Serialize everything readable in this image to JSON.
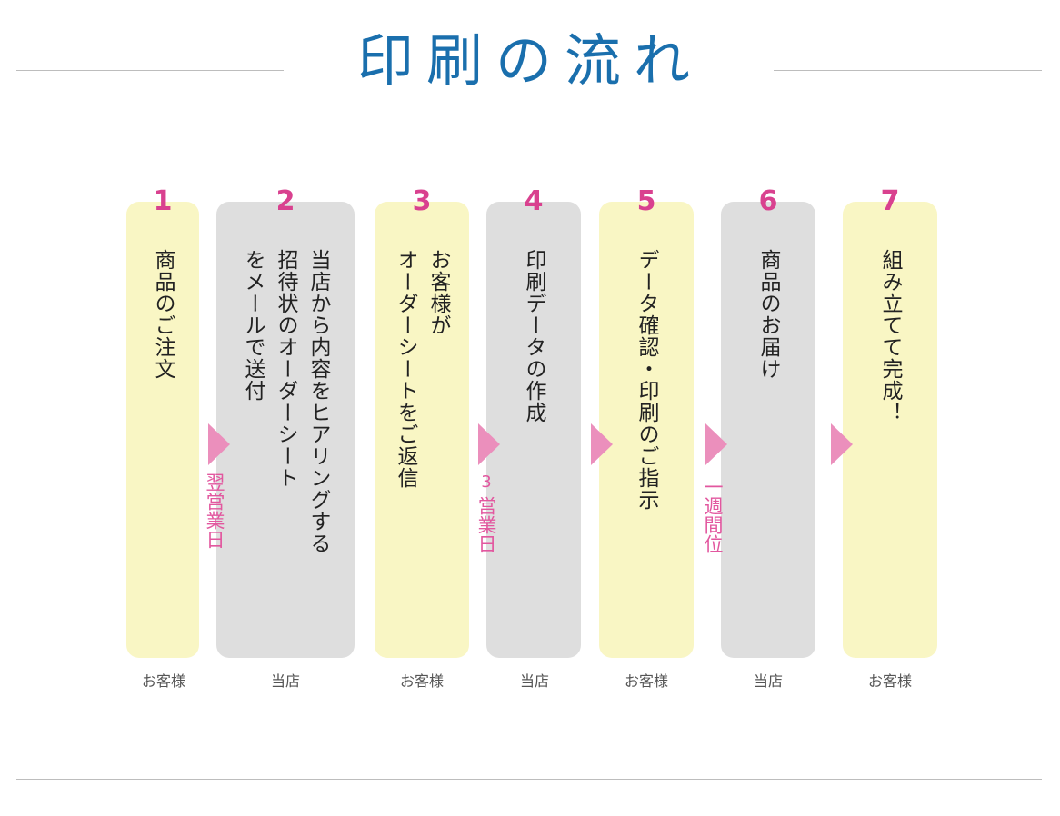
{
  "title": "印刷の流れ",
  "steps": [
    {
      "num": "1",
      "text": "商品のご注文",
      "owner": "お客様",
      "kind": "cust"
    },
    {
      "num": "2",
      "text": "当店から内容をヒアリングする\n招待状のオーダーシート\nをメールで送付",
      "owner": "当店",
      "kind": "shop"
    },
    {
      "num": "3",
      "text": "お客様が\nオーダーシートをご返信",
      "owner": "お客様",
      "kind": "cust"
    },
    {
      "num": "4",
      "text": "印刷データの作成",
      "owner": "当店",
      "kind": "shop"
    },
    {
      "num": "5",
      "text": "データ確認・印刷のご指示",
      "owner": "お客様",
      "kind": "cust"
    },
    {
      "num": "6",
      "text": "商品のお届け",
      "owner": "当店",
      "kind": "shop"
    },
    {
      "num": "7",
      "text": "組み立てて完成！",
      "owner": "お客様",
      "kind": "cust"
    }
  ],
  "durations": {
    "after_step_1": "翌営業日",
    "after_step_3_num": "3",
    "after_step_3": "営業日",
    "after_step_5": "一週間位"
  },
  "colors": {
    "title": "#1a6fad",
    "customer_box": "#f9f6c4",
    "shop_box": "#dedede",
    "accent_pink": "#d9418f",
    "arrow": "#eb8fbc"
  }
}
